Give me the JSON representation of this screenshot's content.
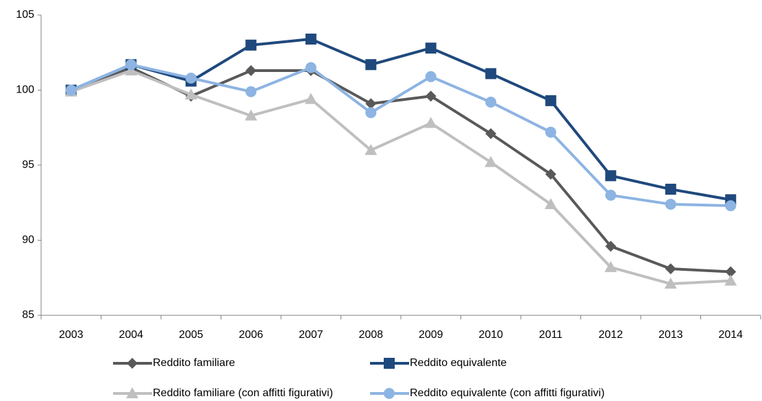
{
  "chart_data": {
    "type": "line",
    "categories": [
      "2003",
      "2004",
      "2005",
      "2006",
      "2007",
      "2008",
      "2009",
      "2010",
      "2011",
      "2012",
      "2013",
      "2014"
    ],
    "series": [
      {
        "name": "Reddito familiare",
        "color": "#595959",
        "marker": "diamond",
        "values": [
          100,
          101.5,
          99.6,
          101.3,
          101.3,
          99.1,
          99.6,
          97.1,
          94.4,
          89.6,
          88.1,
          87.9
        ]
      },
      {
        "name": "Reddito equivalente",
        "color": "#1f497d",
        "marker": "square",
        "values": [
          100,
          101.7,
          100.6,
          103.0,
          103.4,
          101.7,
          102.8,
          101.1,
          99.3,
          94.3,
          93.4,
          92.7
        ]
      },
      {
        "name": "Reddito familiare (con affitti figurativi)",
        "color": "#bfbfbf",
        "marker": "triangle",
        "values": [
          99.9,
          101.3,
          99.7,
          98.3,
          99.4,
          96.0,
          97.8,
          95.2,
          92.4,
          88.2,
          87.1,
          87.3
        ]
      },
      {
        "name": "Reddito equivalente (con affitti figurativi)",
        "color": "#8db4e2",
        "marker": "circle",
        "values": [
          100,
          101.7,
          100.8,
          99.9,
          101.5,
          98.5,
          100.9,
          99.2,
          97.2,
          93.0,
          92.4,
          92.3
        ]
      }
    ],
    "ylim": [
      85,
      105
    ],
    "yticks": [
      85,
      90,
      95,
      100,
      105
    ],
    "grid": false
  }
}
